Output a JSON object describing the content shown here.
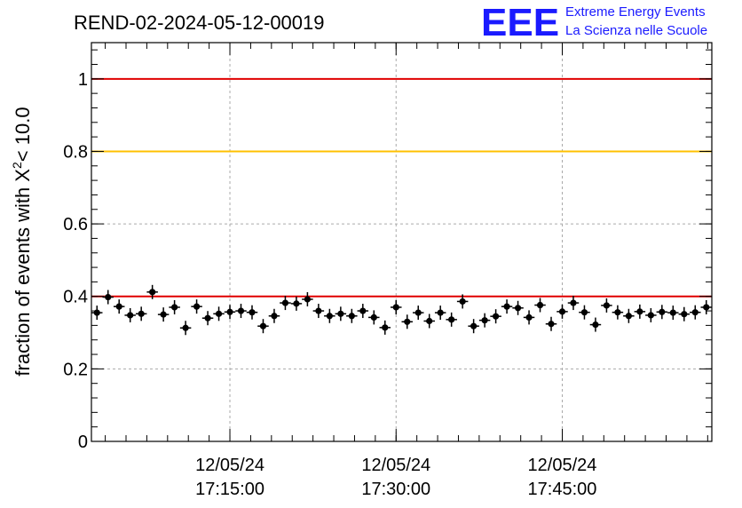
{
  "chart_data": {
    "type": "scatter",
    "title": "REND-02-2024-05-12-00019",
    "xlabel": "",
    "ylabel": "fraction of events with",
    "ylabel_symbol": "X",
    "ylabel_superscript": "2",
    "ylabel_tail": "< 10.0",
    "ylim": [
      0,
      1.1
    ],
    "yticks": [
      {
        "value": 0,
        "label": "0"
      },
      {
        "value": 0.2,
        "label": "0.2"
      },
      {
        "value": 0.4,
        "label": "0.4"
      },
      {
        "value": 0.6,
        "label": "0.6"
      },
      {
        "value": 0.8,
        "label": "0.8"
      },
      {
        "value": 1,
        "label": "1"
      }
    ],
    "xticks": [
      {
        "index": 12.5,
        "date": "12/05/24",
        "time": "17:15:00"
      },
      {
        "index": 27.5,
        "date": "12/05/24",
        "time": "17:30:00"
      },
      {
        "index": 42.5,
        "date": "12/05/24",
        "time": "17:45:00"
      }
    ],
    "grid": true,
    "reference_lines": [
      {
        "value": 1.0,
        "color": "#e00000"
      },
      {
        "value": 0.8,
        "color": "#ffc000"
      },
      {
        "value": 0.4,
        "color": "#e00000"
      }
    ],
    "marker_color": "#000000",
    "values": [
      0.355,
      0.398,
      0.372,
      0.348,
      0.352,
      0.412,
      0.35,
      0.37,
      0.313,
      0.372,
      0.34,
      0.352,
      0.357,
      0.36,
      0.356,
      0.318,
      0.346,
      0.382,
      0.38,
      0.392,
      0.36,
      0.346,
      0.352,
      0.346,
      0.36,
      0.342,
      0.314,
      0.37,
      0.33,
      0.355,
      0.332,
      0.355,
      0.336,
      0.386,
      0.318,
      0.334,
      0.345,
      0.372,
      0.368,
      0.342,
      0.376,
      0.324,
      0.358,
      0.382,
      0.356,
      0.322,
      0.375,
      0.356,
      0.346,
      0.358,
      0.348,
      0.357,
      0.355,
      0.351,
      0.356,
      0.37
    ]
  },
  "logo": {
    "mark": "EEE",
    "line1": "Extreme Energy Events",
    "line2": "La Scienza nelle Scuole"
  }
}
